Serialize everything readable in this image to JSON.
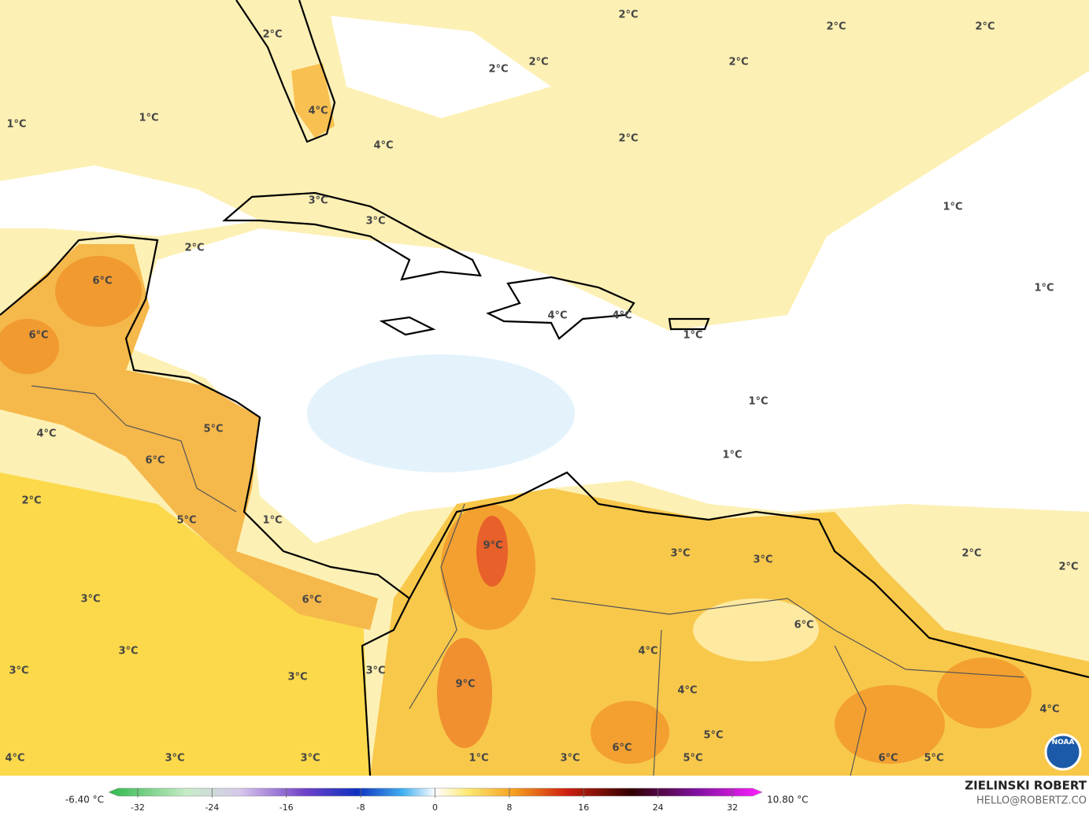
{
  "map": {
    "labels": [
      "2°C",
      "2°C",
      "2°C",
      "2°C",
      "2°C",
      "2°C",
      "2°C",
      "4°C",
      "1°C",
      "1°C",
      "2°C",
      "4°C",
      "3°C",
      "3°C",
      "1°C",
      "2°C",
      "6°C",
      "1°C",
      "4°C",
      "4°C",
      "1°C",
      "6°C",
      "1°C",
      "4°C",
      "5°C",
      "6°C",
      "1°C",
      "2°C",
      "5°C",
      "1°C",
      "9°C",
      "2°C",
      "3°C",
      "3°C",
      "2°C",
      "6°C",
      "3°C",
      "6°C",
      "3°C",
      "4°C",
      "3°C",
      "3°C",
      "3°C",
      "9°C",
      "4°C",
      "4°C",
      "5°C",
      "6°C",
      "4°C",
      "3°C",
      "3°C",
      "1°C",
      "3°C",
      "5°C",
      "6°C",
      "5°C"
    ],
    "logo": "NOAA"
  },
  "colorbar": {
    "min_label": "-6.40 °C",
    "max_label": "10.80 °C",
    "ticks": [
      -32,
      -24,
      -16,
      -8,
      0,
      8,
      16,
      24,
      32
    ]
  },
  "credit": {
    "name": "ZIELINSKI ROBERT",
    "email": "HELLO@ROBERTZ.CO"
  }
}
